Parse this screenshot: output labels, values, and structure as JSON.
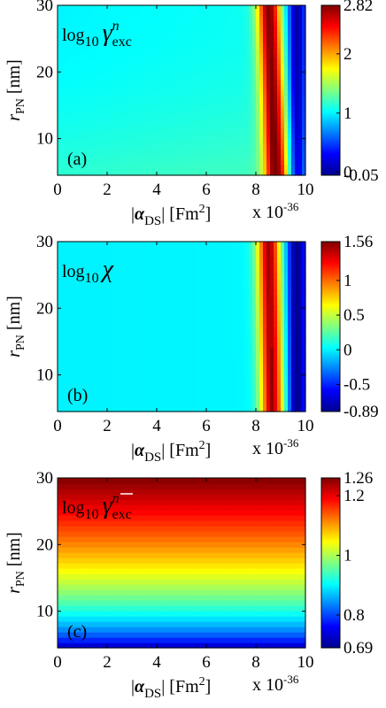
{
  "figure": {
    "panel_labels": [
      "(a)",
      "(b)",
      "(c)"
    ],
    "x_scale_note": "x 10",
    "x_scale_exp": "-36"
  },
  "colormap": [
    "#00008f",
    "#0000ff",
    "#0080ff",
    "#00ffff",
    "#80ff80",
    "#ffff00",
    "#ff8000",
    "#ff0000",
    "#800000"
  ],
  "chart_data": [
    {
      "type": "heatmap",
      "panel": "(a)",
      "annotation": {
        "prefix": "log",
        "sub": "10",
        "symbol": "γ",
        "sup": "n",
        "symbol_sub": "exc",
        "overbar": false,
        "color": "#000000"
      },
      "xlabel": {
        "pre": "|",
        "symbol": "α",
        "sub": "DS",
        "post": "| [Fm",
        "sup": "2",
        "end": "]"
      },
      "ylabel": {
        "symbol": "r",
        "sub": "PN",
        "post": " [nm]"
      },
      "x_ticks": [
        "0",
        "2",
        "4",
        "6",
        "8",
        "10"
      ],
      "y_ticks": [
        "10",
        "20",
        "30"
      ],
      "xlim": [
        0,
        10
      ],
      "ylim": [
        4.5,
        30
      ],
      "colorbar": {
        "range": [
          -0.05,
          2.82
        ],
        "ticks": [
          "-0.05",
          "0",
          "1",
          "2",
          "2.82"
        ],
        "tick_values": [
          -0.05,
          0,
          1,
          2,
          2.82
        ]
      },
      "model": {
        "kind": "resonance",
        "baseline": 1.0,
        "rise_small_r": 0.15,
        "peak_x": 8.55,
        "peak_x_shift": 0.3,
        "peak_width": 0.35,
        "peak_height": 1.8,
        "min_x": 9.7,
        "min_depth": 1.0
      }
    },
    {
      "type": "heatmap",
      "panel": "(b)",
      "annotation": {
        "prefix": "log",
        "sub": "10",
        "symbol": "χ",
        "sup": "",
        "symbol_sub": "",
        "overbar": false,
        "color": "#000000"
      },
      "xlabel": {
        "pre": "|",
        "symbol": "α",
        "sub": "DS",
        "post": "| [Fm",
        "sup": "2",
        "end": "]"
      },
      "ylabel": {
        "symbol": "r",
        "sub": "PN",
        "post": " [nm]"
      },
      "x_ticks": [
        "0",
        "2",
        "4",
        "6",
        "8",
        "10"
      ],
      "y_ticks": [
        "10",
        "20",
        "30"
      ],
      "xlim": [
        0,
        10
      ],
      "ylim": [
        4.5,
        30
      ],
      "colorbar": {
        "range": [
          -0.89,
          1.56
        ],
        "ticks": [
          "-0.89",
          "-0.5",
          "0",
          "0.5",
          "1",
          "1.56"
        ],
        "tick_values": [
          -0.89,
          -0.5,
          0,
          0.5,
          1,
          1.56
        ]
      },
      "model": {
        "kind": "resonance",
        "baseline": 0.0,
        "rise_small_r": 0.0,
        "peak_x": 8.55,
        "peak_x_shift": 0.15,
        "peak_width": 0.35,
        "peak_height": 1.5,
        "min_x": 9.7,
        "min_depth": 0.9
      }
    },
    {
      "type": "heatmap",
      "panel": "(c)",
      "annotation": {
        "prefix": "log",
        "sub": "10",
        "symbol": "γ",
        "sup": "n",
        "symbol_sub": "exc",
        "overbar": true,
        "color": "#ffffff"
      },
      "xlabel": {
        "pre": "|",
        "symbol": "α",
        "sub": "DS",
        "post": "| [Fm",
        "sup": "2",
        "end": "]"
      },
      "ylabel": {
        "symbol": "r",
        "sub": "PN",
        "post": " [nm]"
      },
      "x_ticks": [
        "0",
        "2",
        "4",
        "6",
        "8",
        "10"
      ],
      "y_ticks": [
        "10",
        "20",
        "30"
      ],
      "xlim": [
        0,
        10
      ],
      "ylim": [
        4.5,
        30
      ],
      "colorbar": {
        "range": [
          0.69,
          1.26
        ],
        "ticks": [
          "0.69",
          "0.8",
          "1",
          "1.2",
          "1.26"
        ],
        "tick_values": [
          0.69,
          0.8,
          1,
          1.2,
          1.26
        ]
      },
      "model": {
        "kind": "radial",
        "min_value": 0.69,
        "max_value": 1.26,
        "exponent": 0.6
      }
    }
  ]
}
